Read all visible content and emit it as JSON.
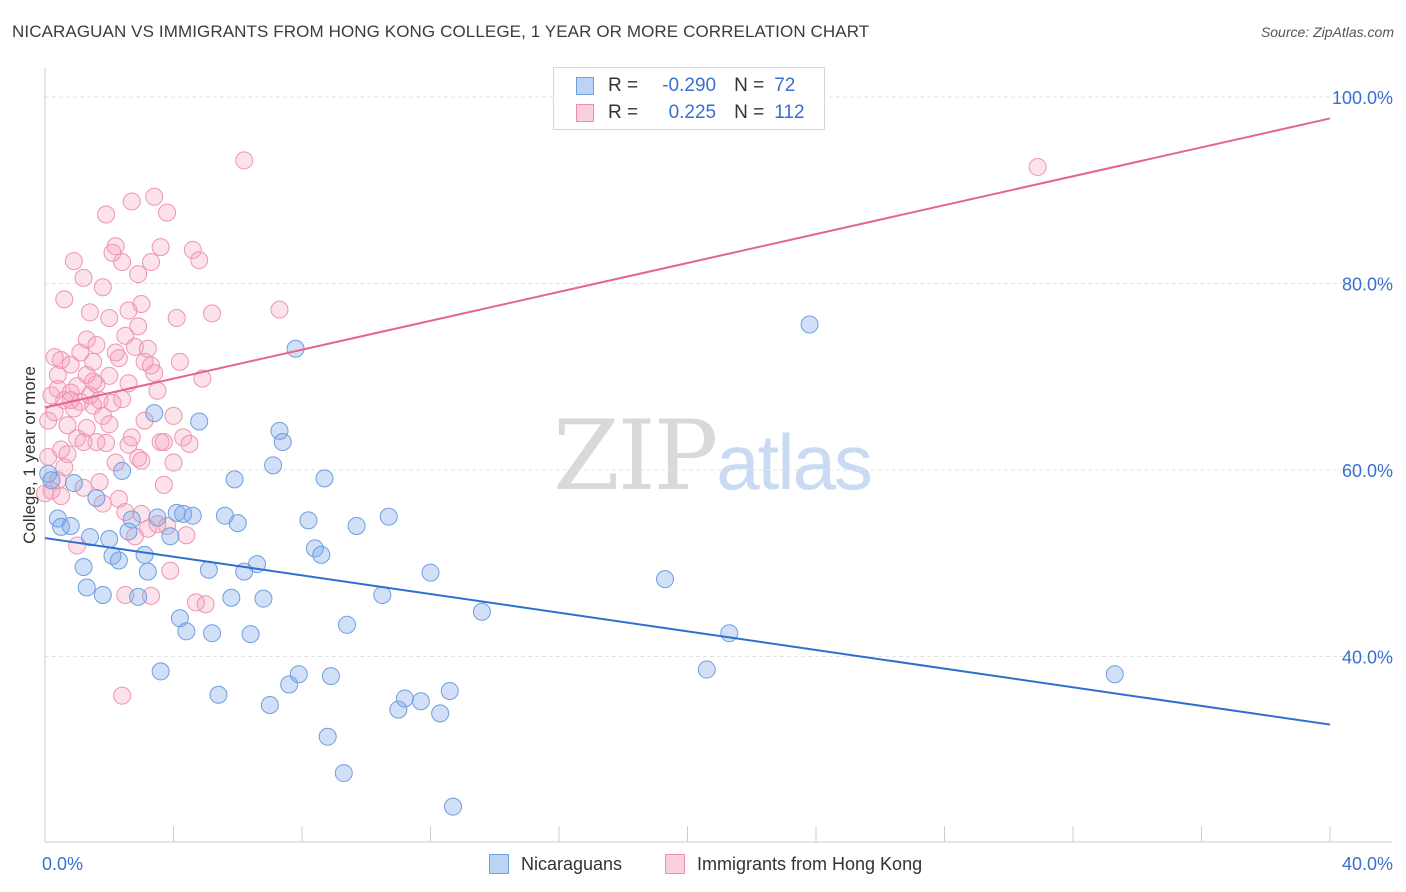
{
  "header": {
    "title": "NICARAGUAN VS IMMIGRANTS FROM HONG KONG COLLEGE, 1 YEAR OR MORE CORRELATION CHART",
    "source": "Source: ZipAtlas.com"
  },
  "watermark": {
    "zip": "ZIP",
    "atlas": "atlas"
  },
  "legend": {
    "rows": [
      {
        "r_label": "R =",
        "r_value": "-0.290",
        "n_label": "N =",
        "n_value": "72",
        "color": "#a9c7ef",
        "border": "#6e9fe0"
      },
      {
        "r_label": "R =",
        "r_value": "0.225",
        "n_label": "N =",
        "n_value": "112",
        "color": "#f8bccd",
        "border": "#ec8fab"
      }
    ]
  },
  "bottom_legend": {
    "nicaraguans": "Nicaraguans",
    "hong_kong": "Immigrants from Hong Kong"
  },
  "axis": {
    "y_label": "College, 1 year or more",
    "x_min_label": "0.0%",
    "x_max_label": "40.0%"
  },
  "colors": {
    "blue_fill": "rgba(122,166,232,0.35)",
    "blue_stroke": "#6f9ee0",
    "blue_line": "#2d6fd0",
    "pink_fill": "rgba(244,160,186,0.30)",
    "pink_stroke": "#ee95b0",
    "pink_line": "#e4658f",
    "grid": "#e3e3e3",
    "tick_text": "#3a6fd1"
  },
  "chart_data": {
    "type": "scatter",
    "title": "NICARAGUAN VS IMMIGRANTS FROM HONG KONG COLLEGE, 1 YEAR OR MORE CORRELATION CHART",
    "xlabel": "",
    "ylabel": "College, 1 year or more",
    "xlim": [
      0,
      40
    ],
    "ylim": [
      20,
      100
    ],
    "x_ticks": [
      0,
      4,
      8,
      12,
      16,
      20,
      24,
      28,
      32,
      36,
      40
    ],
    "y_ticks": [
      40,
      60,
      80,
      100
    ],
    "y_tick_labels": [
      "40.0%",
      "60.0%",
      "80.0%",
      "100.0%"
    ],
    "series": [
      {
        "name": "Nicaraguans",
        "R": -0.29,
        "N": 72,
        "trend": {
          "x": [
            0,
            40
          ],
          "y": [
            52.7,
            32.7
          ]
        },
        "points": [
          [
            0.1,
            59.6
          ],
          [
            0.2,
            58.9
          ],
          [
            0.4,
            54.8
          ],
          [
            0.5,
            53.9
          ],
          [
            0.8,
            54.0
          ],
          [
            0.9,
            58.6
          ],
          [
            1.2,
            49.6
          ],
          [
            1.3,
            47.4
          ],
          [
            1.4,
            52.8
          ],
          [
            1.6,
            57.0
          ],
          [
            1.8,
            46.6
          ],
          [
            2.0,
            52.6
          ],
          [
            2.1,
            50.8
          ],
          [
            2.3,
            50.3
          ],
          [
            2.4,
            59.9
          ],
          [
            2.6,
            53.4
          ],
          [
            2.7,
            54.7
          ],
          [
            2.9,
            46.4
          ],
          [
            3.1,
            50.9
          ],
          [
            3.2,
            49.1
          ],
          [
            3.4,
            66.1
          ],
          [
            3.5,
            54.9
          ],
          [
            3.6,
            38.4
          ],
          [
            3.9,
            52.9
          ],
          [
            4.1,
            55.4
          ],
          [
            4.2,
            44.1
          ],
          [
            4.3,
            55.3
          ],
          [
            4.4,
            42.7
          ],
          [
            4.6,
            55.1
          ],
          [
            4.8,
            65.2
          ],
          [
            5.1,
            49.3
          ],
          [
            5.2,
            42.5
          ],
          [
            5.4,
            35.9
          ],
          [
            5.6,
            55.1
          ],
          [
            5.8,
            46.3
          ],
          [
            5.9,
            59.0
          ],
          [
            6.0,
            54.3
          ],
          [
            6.2,
            49.1
          ],
          [
            6.4,
            42.4
          ],
          [
            6.6,
            49.9
          ],
          [
            6.8,
            46.2
          ],
          [
            7.0,
            34.8
          ],
          [
            7.1,
            60.5
          ],
          [
            7.3,
            64.2
          ],
          [
            7.4,
            63.0
          ],
          [
            7.6,
            37.0
          ],
          [
            7.8,
            73.0
          ],
          [
            7.9,
            38.1
          ],
          [
            8.2,
            54.6
          ],
          [
            8.4,
            51.6
          ],
          [
            8.6,
            50.9
          ],
          [
            8.7,
            59.1
          ],
          [
            8.8,
            31.4
          ],
          [
            8.9,
            37.9
          ],
          [
            9.3,
            27.5
          ],
          [
            9.4,
            43.4
          ],
          [
            9.7,
            54.0
          ],
          [
            10.5,
            46.6
          ],
          [
            10.7,
            55.0
          ],
          [
            11.0,
            34.3
          ],
          [
            11.2,
            35.5
          ],
          [
            11.7,
            35.2
          ],
          [
            12.0,
            49.0
          ],
          [
            12.3,
            33.9
          ],
          [
            12.6,
            36.3
          ],
          [
            12.7,
            23.9
          ],
          [
            13.6,
            44.8
          ],
          [
            19.3,
            48.3
          ],
          [
            20.6,
            38.6
          ],
          [
            21.3,
            42.5
          ],
          [
            23.8,
            75.6
          ],
          [
            33.3,
            38.1
          ]
        ]
      },
      {
        "name": "Immigrants from Hong Kong",
        "R": 0.225,
        "N": 112,
        "trend": {
          "x": [
            0,
            40
          ],
          "y": [
            66.7,
            97.7
          ]
        },
        "points": [
          [
            0.0,
            57.5
          ],
          [
            0.1,
            65.3
          ],
          [
            0.1,
            61.4
          ],
          [
            0.2,
            68.0
          ],
          [
            0.3,
            66.2
          ],
          [
            0.3,
            72.1
          ],
          [
            0.4,
            68.7
          ],
          [
            0.4,
            58.9
          ],
          [
            0.5,
            62.2
          ],
          [
            0.5,
            71.8
          ],
          [
            0.6,
            78.3
          ],
          [
            0.6,
            67.5
          ],
          [
            0.7,
            64.8
          ],
          [
            0.7,
            61.7
          ],
          [
            0.8,
            71.3
          ],
          [
            0.8,
            68.3
          ],
          [
            0.9,
            82.4
          ],
          [
            0.9,
            66.6
          ],
          [
            1.0,
            69.0
          ],
          [
            1.0,
            63.4
          ],
          [
            1.1,
            72.6
          ],
          [
            1.1,
            67.3
          ],
          [
            1.2,
            80.6
          ],
          [
            1.2,
            58.1
          ],
          [
            1.3,
            70.2
          ],
          [
            1.3,
            64.5
          ],
          [
            1.4,
            76.9
          ],
          [
            1.4,
            68.0
          ],
          [
            1.5,
            66.9
          ],
          [
            1.5,
            71.6
          ],
          [
            1.6,
            63.0
          ],
          [
            1.6,
            69.2
          ],
          [
            1.7,
            67.5
          ],
          [
            1.7,
            58.7
          ],
          [
            1.8,
            79.6
          ],
          [
            1.8,
            65.8
          ],
          [
            1.9,
            87.4
          ],
          [
            1.9,
            62.9
          ],
          [
            2.0,
            76.3
          ],
          [
            2.0,
            70.1
          ],
          [
            2.1,
            83.3
          ],
          [
            2.1,
            67.2
          ],
          [
            2.2,
            84.0
          ],
          [
            2.2,
            60.8
          ],
          [
            2.3,
            72.0
          ],
          [
            2.3,
            56.9
          ],
          [
            2.4,
            82.3
          ],
          [
            2.4,
            67.6
          ],
          [
            2.5,
            55.5
          ],
          [
            2.5,
            74.4
          ],
          [
            2.6,
            77.1
          ],
          [
            2.6,
            62.7
          ],
          [
            2.7,
            88.8
          ],
          [
            2.7,
            63.5
          ],
          [
            2.8,
            73.2
          ],
          [
            2.8,
            52.9
          ],
          [
            2.9,
            75.4
          ],
          [
            2.9,
            61.3
          ],
          [
            3.0,
            77.8
          ],
          [
            3.0,
            55.3
          ],
          [
            3.1,
            71.6
          ],
          [
            3.1,
            65.3
          ],
          [
            3.2,
            73.0
          ],
          [
            3.2,
            53.7
          ],
          [
            3.3,
            82.3
          ],
          [
            3.3,
            46.5
          ],
          [
            3.4,
            89.3
          ],
          [
            3.4,
            70.4
          ],
          [
            3.5,
            68.5
          ],
          [
            3.5,
            54.2
          ],
          [
            3.6,
            63.0
          ],
          [
            3.6,
            83.9
          ],
          [
            3.7,
            63.0
          ],
          [
            3.8,
            87.6
          ],
          [
            3.8,
            54.0
          ],
          [
            3.9,
            49.2
          ],
          [
            4.0,
            65.8
          ],
          [
            4.1,
            76.3
          ],
          [
            4.2,
            71.6
          ],
          [
            4.3,
            63.5
          ],
          [
            4.4,
            53.0
          ],
          [
            4.5,
            62.8
          ],
          [
            4.6,
            83.6
          ],
          [
            4.7,
            45.8
          ],
          [
            4.8,
            82.5
          ],
          [
            4.9,
            69.8
          ],
          [
            5.0,
            45.6
          ],
          [
            5.2,
            76.8
          ],
          [
            6.2,
            93.2
          ],
          [
            7.3,
            77.2
          ],
          [
            0.2,
            57.8
          ],
          [
            0.6,
            60.3
          ],
          [
            1.0,
            51.9
          ],
          [
            1.5,
            69.5
          ],
          [
            2.0,
            64.9
          ],
          [
            2.5,
            46.6
          ],
          [
            3.0,
            61.0
          ],
          [
            2.4,
            35.8
          ],
          [
            1.8,
            56.4
          ],
          [
            1.2,
            63.0
          ],
          [
            0.8,
            67.5
          ],
          [
            0.4,
            70.2
          ],
          [
            2.9,
            81.0
          ],
          [
            3.7,
            58.4
          ],
          [
            4.0,
            60.8
          ],
          [
            1.3,
            74.0
          ],
          [
            2.2,
            72.6
          ],
          [
            0.5,
            57.2
          ],
          [
            1.6,
            73.4
          ],
          [
            2.6,
            69.3
          ],
          [
            3.3,
            71.2
          ],
          [
            30.9,
            92.5
          ]
        ]
      }
    ]
  }
}
